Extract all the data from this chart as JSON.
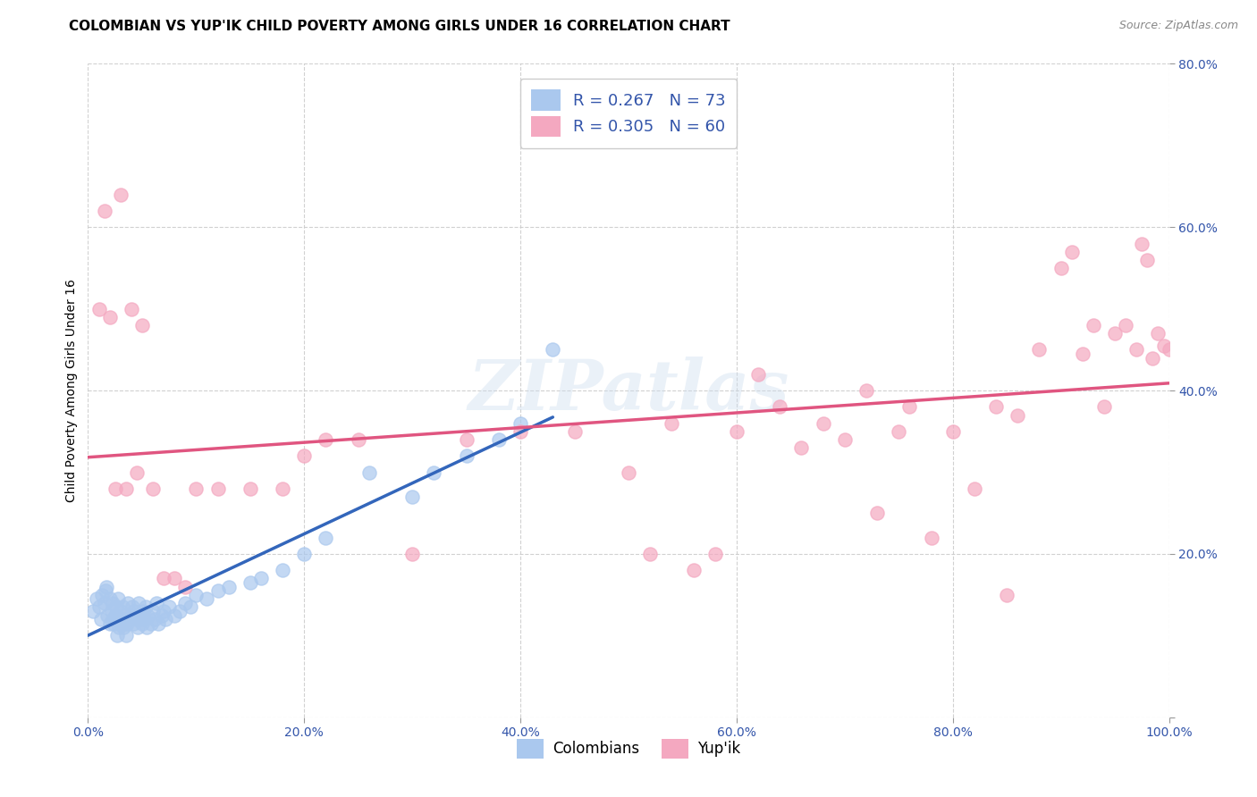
{
  "title": "COLOMBIAN VS YUP'IK CHILD POVERTY AMONG GIRLS UNDER 16 CORRELATION CHART",
  "source": "Source: ZipAtlas.com",
  "ylabel": "Child Poverty Among Girls Under 16",
  "xlim": [
    0,
    1.0
  ],
  "ylim": [
    0,
    0.8
  ],
  "xticks": [
    0.0,
    0.2,
    0.4,
    0.6,
    0.8,
    1.0
  ],
  "yticks": [
    0.0,
    0.2,
    0.4,
    0.6,
    0.8
  ],
  "xticklabels": [
    "0.0%",
    "20.0%",
    "40.0%",
    "60.0%",
    "80.0%",
    "100.0%"
  ],
  "yticklabels": [
    "",
    "20.0%",
    "40.0%",
    "60.0%",
    "80.0%"
  ],
  "color_colombian": "#aac8ee",
  "color_yupik": "#f4a8c0",
  "color_trend_colombian": "#3366bb",
  "color_trend_yupik": "#e05580",
  "color_trend_colombian_dashed": "#8899bb",
  "watermark_text": "ZIPatlas",
  "background_color": "#ffffff",
  "grid_color": "#cccccc",
  "title_fontsize": 11,
  "axis_label_fontsize": 10,
  "tick_fontsize": 10,
  "legend1_labels": [
    "R = 0.267   N = 73",
    "R = 0.305   N = 60"
  ],
  "legend2_labels": [
    "Colombians",
    "Yup'ik"
  ],
  "colombian_x": [
    0.005,
    0.008,
    0.01,
    0.012,
    0.013,
    0.015,
    0.016,
    0.017,
    0.018,
    0.02,
    0.02,
    0.022,
    0.023,
    0.023,
    0.024,
    0.025,
    0.026,
    0.027,
    0.028,
    0.029,
    0.03,
    0.03,
    0.031,
    0.032,
    0.033,
    0.034,
    0.035,
    0.036,
    0.037,
    0.038,
    0.04,
    0.041,
    0.042,
    0.043,
    0.045,
    0.046,
    0.047,
    0.048,
    0.05,
    0.051,
    0.052,
    0.053,
    0.054,
    0.055,
    0.058,
    0.06,
    0.062,
    0.063,
    0.065,
    0.068,
    0.07,
    0.072,
    0.075,
    0.08,
    0.085,
    0.09,
    0.095,
    0.1,
    0.11,
    0.12,
    0.13,
    0.15,
    0.16,
    0.18,
    0.2,
    0.22,
    0.26,
    0.3,
    0.32,
    0.35,
    0.38,
    0.4,
    0.43
  ],
  "colombian_y": [
    0.13,
    0.145,
    0.135,
    0.12,
    0.15,
    0.14,
    0.155,
    0.16,
    0.125,
    0.115,
    0.145,
    0.13,
    0.12,
    0.14,
    0.115,
    0.125,
    0.135,
    0.1,
    0.145,
    0.11,
    0.115,
    0.13,
    0.12,
    0.135,
    0.11,
    0.125,
    0.1,
    0.115,
    0.14,
    0.12,
    0.125,
    0.135,
    0.115,
    0.13,
    0.12,
    0.11,
    0.14,
    0.125,
    0.115,
    0.13,
    0.12,
    0.135,
    0.11,
    0.125,
    0.115,
    0.13,
    0.12,
    0.14,
    0.115,
    0.125,
    0.13,
    0.12,
    0.135,
    0.125,
    0.13,
    0.14,
    0.135,
    0.15,
    0.145,
    0.155,
    0.16,
    0.165,
    0.17,
    0.18,
    0.2,
    0.22,
    0.3,
    0.27,
    0.3,
    0.32,
    0.34,
    0.36,
    0.45
  ],
  "yupik_x": [
    0.01,
    0.015,
    0.02,
    0.025,
    0.03,
    0.035,
    0.04,
    0.045,
    0.05,
    0.06,
    0.07,
    0.08,
    0.09,
    0.1,
    0.12,
    0.15,
    0.18,
    0.2,
    0.22,
    0.25,
    0.3,
    0.35,
    0.4,
    0.45,
    0.5,
    0.52,
    0.54,
    0.56,
    0.58,
    0.6,
    0.62,
    0.64,
    0.66,
    0.68,
    0.7,
    0.72,
    0.73,
    0.75,
    0.76,
    0.78,
    0.8,
    0.82,
    0.84,
    0.85,
    0.86,
    0.88,
    0.9,
    0.91,
    0.92,
    0.93,
    0.94,
    0.95,
    0.96,
    0.97,
    0.975,
    0.98,
    0.985,
    0.99,
    0.995,
    1.0
  ],
  "yupik_y": [
    0.5,
    0.62,
    0.49,
    0.28,
    0.64,
    0.28,
    0.5,
    0.3,
    0.48,
    0.28,
    0.17,
    0.17,
    0.16,
    0.28,
    0.28,
    0.28,
    0.28,
    0.32,
    0.34,
    0.34,
    0.2,
    0.34,
    0.35,
    0.35,
    0.3,
    0.2,
    0.36,
    0.18,
    0.2,
    0.35,
    0.42,
    0.38,
    0.33,
    0.36,
    0.34,
    0.4,
    0.25,
    0.35,
    0.38,
    0.22,
    0.35,
    0.28,
    0.38,
    0.15,
    0.37,
    0.45,
    0.55,
    0.57,
    0.445,
    0.48,
    0.38,
    0.47,
    0.48,
    0.45,
    0.58,
    0.56,
    0.44,
    0.47,
    0.455,
    0.45
  ]
}
